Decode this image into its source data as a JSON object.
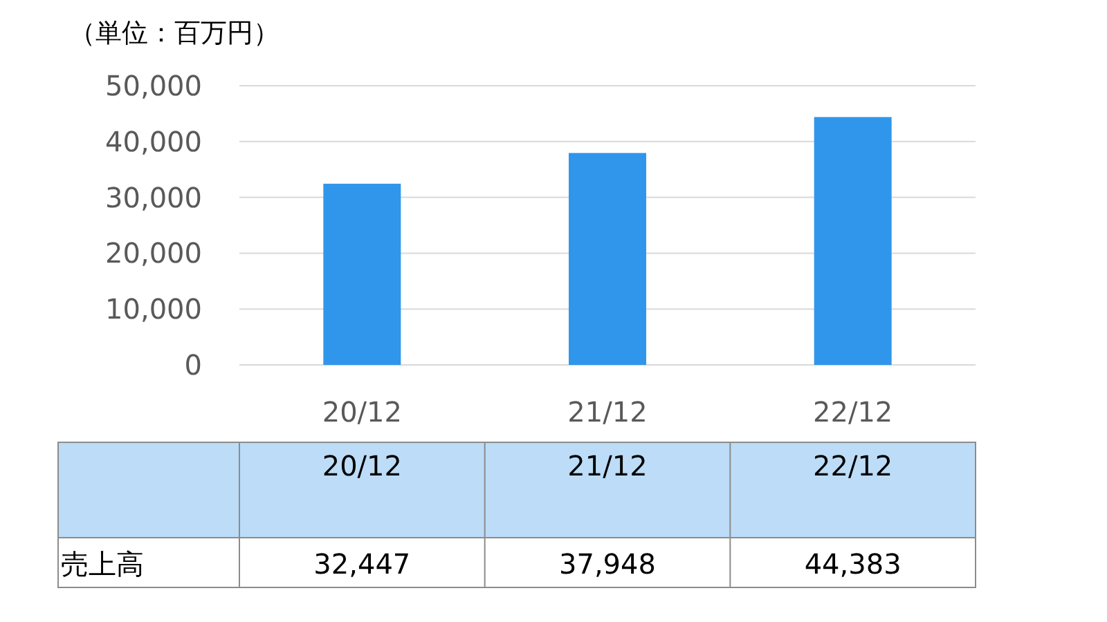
{
  "chart_data": {
    "type": "bar",
    "ylabel": "（単位：百万円）",
    "categories": [
      "20/12",
      "21/12",
      "22/12"
    ],
    "series": [
      {
        "name": "売上高",
        "color": "#3096eb",
        "values": [
          32447,
          37948,
          44383
        ],
        "value_labels": [
          "32,447",
          "37,948",
          "44,383"
        ]
      }
    ],
    "ylim": [
      0,
      50000
    ],
    "yticks": [
      {
        "value": 0,
        "label": "0"
      },
      {
        "value": 10000,
        "label": "10,000"
      },
      {
        "value": 20000,
        "label": "20,000"
      },
      {
        "value": 30000,
        "label": "30,000"
      },
      {
        "value": 40000,
        "label": "40,000"
      },
      {
        "value": 50000,
        "label": "50,000"
      }
    ],
    "grid": "y"
  }
}
